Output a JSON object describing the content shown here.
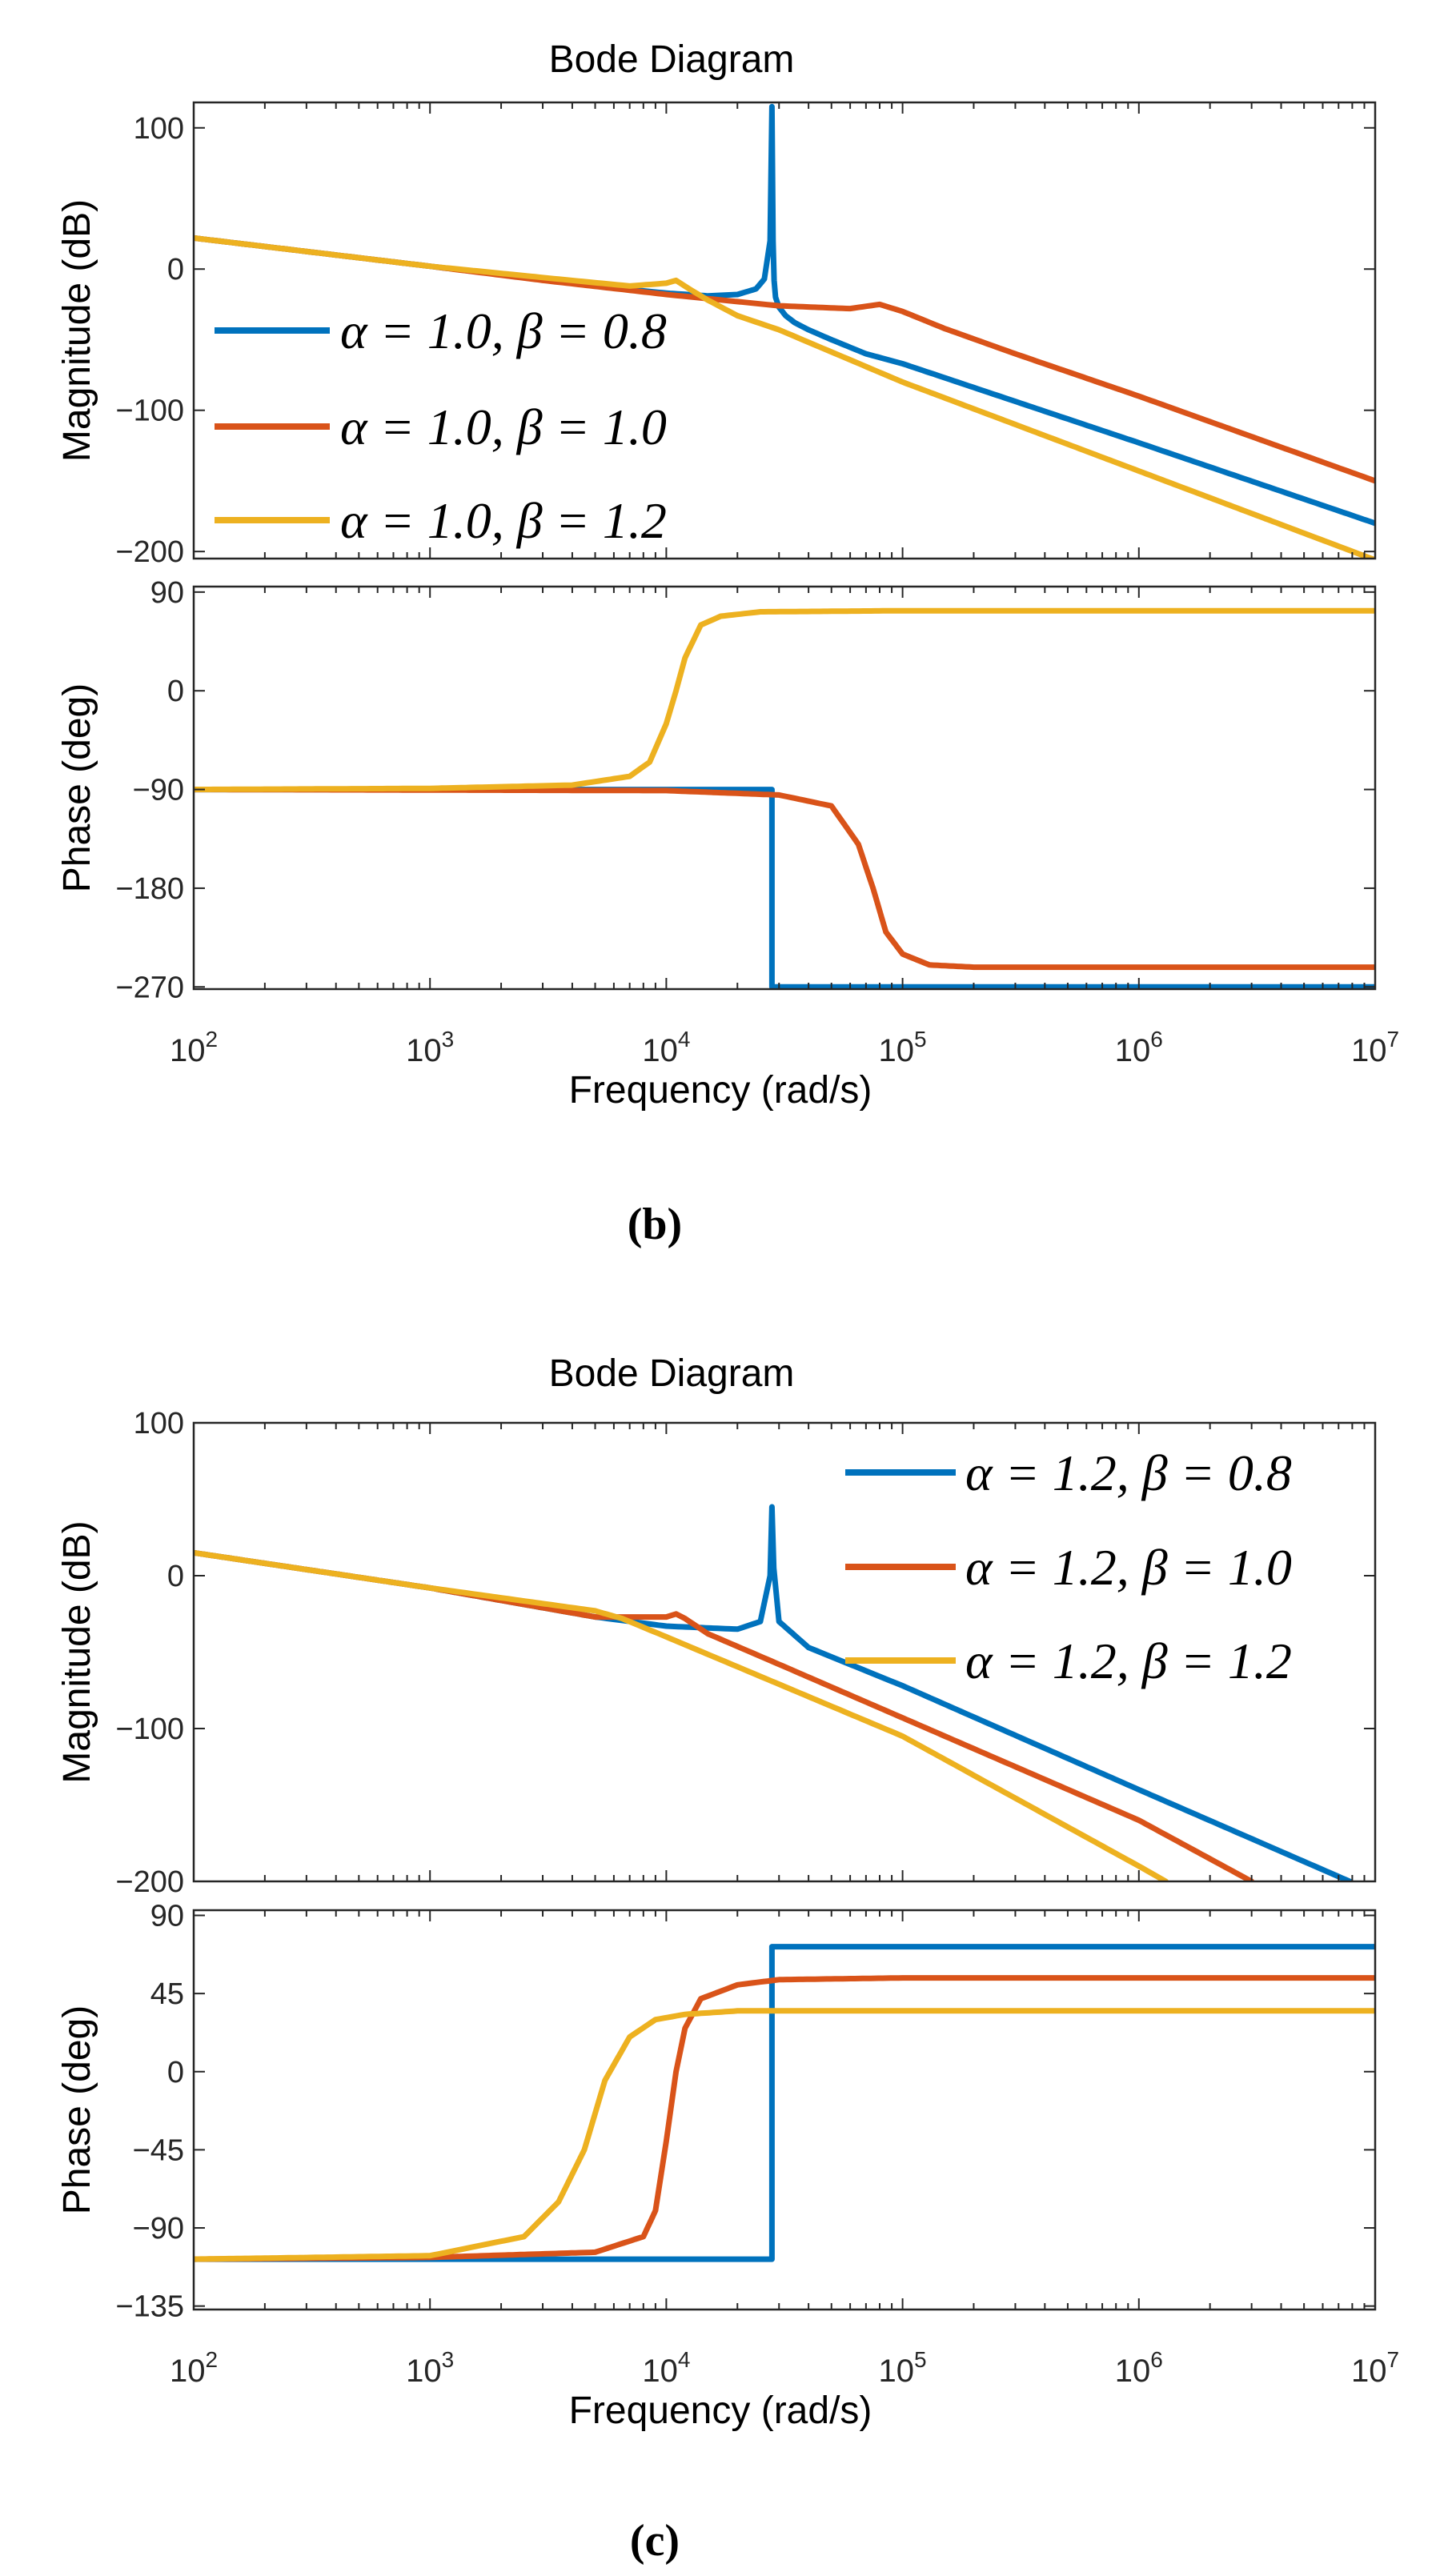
{
  "colors": {
    "blue": "#0072BD",
    "orange": "#D95319",
    "yellow": "#EDB120"
  },
  "chart_data": [
    {
      "panel_label": "(b)",
      "title": "Bode Diagram",
      "xlabel": "Frequency  (rad/s)",
      "x_scale": "log",
      "xlim": [
        100,
        10000000
      ],
      "x_ticks": [
        {
          "value": 100,
          "base": "10",
          "exp": "2"
        },
        {
          "value": 1000,
          "base": "10",
          "exp": "3"
        },
        {
          "value": 10000,
          "base": "10",
          "exp": "4"
        },
        {
          "value": 100000,
          "base": "10",
          "exp": "5"
        },
        {
          "value": 1000000,
          "base": "10",
          "exp": "6"
        },
        {
          "value": 10000000,
          "base": "10",
          "exp": "7"
        }
      ],
      "legend_position": "left",
      "magnitude": {
        "type": "line",
        "ylabel": "Magnitude (dB)",
        "ylim": [
          -205,
          118
        ],
        "y_ticks": [
          {
            "value": 100,
            "label": "100"
          },
          {
            "value": 0,
            "label": "0"
          },
          {
            "value": -100,
            "label": "−100"
          },
          {
            "value": -200,
            "label": "−200"
          }
        ],
        "series": [
          {
            "name": "α = 1.0, β = 0.8",
            "color": "blue",
            "x": [
              100,
              1000,
              5000,
              10000,
              15000,
              20000,
              24000,
              26000,
              27500,
              28000,
              28300,
              28600,
              29000,
              30000,
              32000,
              35000,
              40000,
              50000,
              70000,
              100000,
              1000000,
              10000000
            ],
            "y": [
              22,
              2,
              -12,
              -17,
              -19,
              -18,
              -14,
              -7,
              20,
              115,
              20,
              -8,
              -20,
              -27,
              -33,
              -38,
              -43,
              -50,
              -60,
              -67,
              -123,
              -180
            ]
          },
          {
            "name": "α = 1.0, β = 1.0",
            "color": "orange",
            "x": [
              100,
              1000,
              3000,
              10000,
              30000,
              60000,
              80000,
              100000,
              150000,
              300000,
              1000000,
              10000000
            ],
            "y": [
              22,
              2,
              -8,
              -18,
              -26,
              -28,
              -25,
              -30,
              -42,
              -60,
              -90,
              -150
            ]
          },
          {
            "name": "α = 1.0, β = 1.2",
            "color": "yellow",
            "x": [
              100,
              1000,
              3000,
              7000,
              10000,
              11000,
              12500,
              15000,
              20000,
              30000,
              100000,
              1000000,
              10000000
            ],
            "y": [
              22,
              2,
              -6,
              -12,
              -10,
              -8,
              -14,
              -22,
              -33,
              -43,
              -80,
              -143,
              -206
            ]
          }
        ]
      },
      "phase": {
        "type": "line",
        "ylabel": "Phase (deg)",
        "ylim": [
          -272,
          95
        ],
        "y_ticks": [
          {
            "value": 90,
            "label": "90"
          },
          {
            "value": 0,
            "label": "0"
          },
          {
            "value": -90,
            "label": "−90"
          },
          {
            "value": -180,
            "label": "−180"
          },
          {
            "value": -270,
            "label": "−270"
          }
        ],
        "series": [
          {
            "name": "α = 1.0, β = 0.8",
            "color": "blue",
            "x": [
              100,
              27990,
              28010,
              10000000
            ],
            "y": [
              -90,
              -90,
              -270,
              -270
            ]
          },
          {
            "name": "α = 1.0, β = 1.0",
            "color": "orange",
            "x": [
              100,
              10000,
              30000,
              50000,
              65000,
              75000,
              85000,
              100000,
              130000,
              200000,
              500000,
              10000000
            ],
            "y": [
              -90,
              -91,
              -95,
              -105,
              -140,
              -180,
              -220,
              -240,
              -250,
              -252,
              -252,
              -252
            ]
          },
          {
            "name": "α = 1.0, β = 1.2",
            "color": "yellow",
            "x": [
              100,
              1000,
              4000,
              7000,
              8500,
              10000,
              11000,
              12000,
              14000,
              17000,
              25000,
              100000,
              10000000
            ],
            "y": [
              -90,
              -89,
              -86,
              -78,
              -65,
              -30,
              0,
              30,
              60,
              68,
              72,
              73,
              73
            ]
          }
        ]
      }
    },
    {
      "panel_label": "(c)",
      "title": "Bode Diagram",
      "xlabel": "Frequency  (rad/s)",
      "x_scale": "log",
      "xlim": [
        100,
        10000000
      ],
      "x_ticks": [
        {
          "value": 100,
          "base": "10",
          "exp": "2"
        },
        {
          "value": 1000,
          "base": "10",
          "exp": "3"
        },
        {
          "value": 10000,
          "base": "10",
          "exp": "4"
        },
        {
          "value": 100000,
          "base": "10",
          "exp": "5"
        },
        {
          "value": 1000000,
          "base": "10",
          "exp": "6"
        },
        {
          "value": 10000000,
          "base": "10",
          "exp": "7"
        }
      ],
      "legend_position": "top-right",
      "magnitude": {
        "type": "line",
        "ylabel": "Magnitude (dB)",
        "ylim": [
          -200,
          100
        ],
        "y_ticks": [
          {
            "value": 100,
            "label": "100"
          },
          {
            "value": 0,
            "label": "0"
          },
          {
            "value": -100,
            "label": "−100"
          },
          {
            "value": -200,
            "label": "−200"
          }
        ],
        "series": [
          {
            "name": "α = 1.2, β = 0.8",
            "color": "blue",
            "x": [
              100,
              1000,
              5000,
              10000,
              20000,
              25000,
              27500,
              28000,
              28500,
              30000,
              40000,
              100000,
              1000000,
              7800000
            ],
            "y": [
              15,
              -8,
              -27,
              -33,
              -35,
              -30,
              0,
              45,
              5,
              -30,
              -47,
              -72,
              -140,
              -200
            ]
          },
          {
            "name": "α = 1.2, β = 1.0",
            "color": "orange",
            "x": [
              100,
              1000,
              5000,
              10000,
              11000,
              12000,
              15000,
              30000,
              100000,
              1000000,
              3000000
            ],
            "y": [
              15,
              -8,
              -27,
              -27,
              -25,
              -28,
              -38,
              -58,
              -93,
              -160,
              -200
            ]
          },
          {
            "name": "α = 1.2, β = 1.2",
            "color": "yellow",
            "x": [
              100,
              1000,
              5000,
              6500,
              10000,
              100000,
              1000000,
              1300000
            ],
            "y": [
              15,
              -8,
              -23,
              -28,
              -40,
              -105,
              -190,
              -200
            ]
          }
        ]
      },
      "phase": {
        "type": "line",
        "ylabel": "Phase (deg)",
        "ylim": [
          -137,
          93
        ],
        "y_ticks": [
          {
            "value": 90,
            "label": "90"
          },
          {
            "value": 45,
            "label": "45"
          },
          {
            "value": 0,
            "label": "0"
          },
          {
            "value": -45,
            "label": "−45"
          },
          {
            "value": -90,
            "label": "−90"
          },
          {
            "value": -135,
            "label": "−135"
          }
        ],
        "series": [
          {
            "name": "α = 1.2, β = 0.8",
            "color": "blue",
            "x": [
              100,
              27990,
              28010,
              10000000
            ],
            "y": [
              -108,
              -108,
              72,
              72
            ]
          },
          {
            "name": "α = 1.2, β = 1.0",
            "color": "orange",
            "x": [
              100,
              1000,
              5000,
              8000,
              9000,
              10000,
              11000,
              12000,
              14000,
              20000,
              30000,
              100000,
              10000000
            ],
            "y": [
              -108,
              -107,
              -104,
              -95,
              -80,
              -40,
              0,
              25,
              42,
              50,
              53,
              54,
              54
            ]
          },
          {
            "name": "α = 1.2, β = 1.2",
            "color": "yellow",
            "x": [
              100,
              1000,
              2500,
              3500,
              4500,
              5500,
              7000,
              9000,
              12000,
              20000,
              100000,
              10000000
            ],
            "y": [
              -108,
              -106,
              -95,
              -75,
              -45,
              -5,
              20,
              30,
              33,
              35,
              35,
              35
            ]
          }
        ]
      }
    }
  ]
}
